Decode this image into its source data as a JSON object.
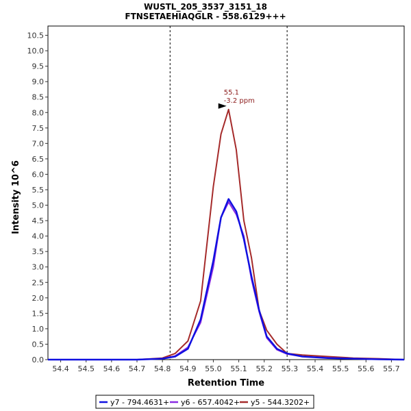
{
  "chart_data": {
    "type": "line",
    "title": "WUSTL_205_3537_3151_18",
    "subtitle": "FTNSETAEHIAQGLR - 558.6129+++",
    "xlabel": "Retention Time",
    "ylabel": "Intensity 10^6",
    "xlim": [
      54.35,
      55.75
    ],
    "ylim": [
      0,
      10.8
    ],
    "x_ticks": [
      "54.4",
      "54.5",
      "54.6",
      "54.7",
      "54.8",
      "54.9",
      "55.0",
      "55.1",
      "55.2",
      "55.3",
      "55.4",
      "55.5",
      "55.6",
      "55.7"
    ],
    "y_ticks": [
      "0.0",
      "0.5",
      "1.0",
      "1.5",
      "2.0",
      "2.5",
      "3.0",
      "3.5",
      "4.0",
      "4.5",
      "5.0",
      "5.5",
      "6.0",
      "6.5",
      "7.0",
      "7.5",
      "8.0",
      "8.5",
      "9.0",
      "9.5",
      "10.0",
      "10.5"
    ],
    "boundaries": [
      54.83,
      55.29
    ],
    "grid": false,
    "legend_position": "bottom",
    "annotation": {
      "x": 55.06,
      "y": 8.1,
      "lines": [
        "55.1",
        "-3.2 ppm"
      ],
      "color": "#8B1A1A"
    },
    "series": [
      {
        "name": "y7 - 794.4631+",
        "color": "#1010e0",
        "x": [
          54.35,
          54.7,
          54.8,
          54.85,
          54.9,
          54.95,
          55.0,
          55.03,
          55.06,
          55.09,
          55.12,
          55.15,
          55.18,
          55.21,
          55.25,
          55.29,
          55.35,
          55.45,
          55.55,
          55.65,
          55.75
        ],
        "y": [
          0.0,
          0.0,
          0.03,
          0.1,
          0.35,
          1.3,
          3.2,
          4.6,
          5.2,
          4.8,
          3.9,
          2.7,
          1.6,
          0.75,
          0.35,
          0.2,
          0.1,
          0.05,
          0.03,
          0.01,
          0.0
        ]
      },
      {
        "name": "y6 - 657.4042+",
        "color": "#8a2be2",
        "x": [
          54.35,
          54.7,
          54.8,
          54.85,
          54.9,
          54.95,
          55.0,
          55.03,
          55.06,
          55.09,
          55.12,
          55.15,
          55.18,
          55.21,
          55.25,
          55.29,
          55.35,
          55.45,
          55.55,
          55.65,
          55.75
        ],
        "y": [
          0.0,
          0.0,
          0.03,
          0.12,
          0.4,
          1.2,
          3.0,
          4.6,
          5.1,
          4.7,
          4.0,
          2.6,
          1.55,
          0.7,
          0.32,
          0.18,
          0.1,
          0.06,
          0.03,
          0.01,
          0.0
        ]
      },
      {
        "name": "y5 - 544.3202+",
        "color": "#a52a2a",
        "x": [
          54.35,
          54.7,
          54.8,
          54.85,
          54.9,
          54.95,
          55.0,
          55.03,
          55.06,
          55.09,
          55.12,
          55.15,
          55.18,
          55.21,
          55.25,
          55.29,
          55.35,
          55.45,
          55.55,
          55.65,
          55.75
        ],
        "y": [
          0.0,
          0.0,
          0.05,
          0.2,
          0.6,
          1.9,
          5.6,
          7.3,
          8.1,
          6.8,
          4.5,
          3.3,
          1.6,
          0.95,
          0.5,
          0.2,
          0.15,
          0.1,
          0.05,
          0.03,
          0.0
        ]
      }
    ]
  }
}
